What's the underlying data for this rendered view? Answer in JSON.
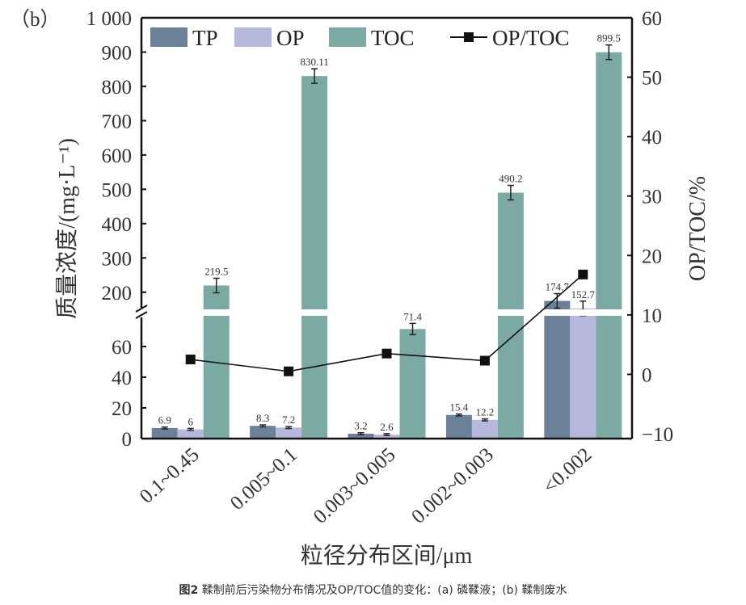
{
  "chart_data": {
    "type": "bar",
    "panel_label": "（b）",
    "title": "",
    "xlabel": "粒径分布区间/μm",
    "ylabel": "质量浓度/(mg·L⁻¹)",
    "ylabel_right": "OP/TOC/%",
    "categories": [
      "0.1~0.45",
      "0.005~0.1",
      "0.003~0.005",
      "0.002~0.003",
      "<0.002"
    ],
    "series": [
      {
        "name": "TP",
        "type": "bar",
        "axis": "left",
        "color": "#6b8199",
        "values": [
          6.9,
          8.3,
          3.2,
          15.4,
          174.7
        ],
        "labels": [
          "6.9",
          "8.3",
          "3.2",
          "15.4",
          "174.7"
        ]
      },
      {
        "name": "OP",
        "type": "bar",
        "axis": "left",
        "color": "#b5b8dc",
        "values": [
          6,
          7.2,
          2.6,
          12.2,
          152.7
        ],
        "labels": [
          "6",
          "7.2",
          "2.6",
          "12.2",
          "152.7"
        ]
      },
      {
        "name": "TOC",
        "type": "bar",
        "axis": "left",
        "color": "#7aaaa2",
        "values": [
          219.5,
          830.11,
          71.4,
          490.2,
          899.5
        ],
        "labels": [
          "219.5",
          "830.11",
          "71.4",
          "490.2",
          "899.5"
        ]
      },
      {
        "name": "OP/TOC",
        "type": "line",
        "axis": "right",
        "color": "#111111",
        "marker": "square",
        "values": [
          2.5,
          0.5,
          3.5,
          2.3,
          16.8
        ]
      }
    ],
    "y_left": {
      "broken": true,
      "lower_range": [
        0,
        80
      ],
      "upper_range": [
        150,
        1000
      ],
      "lower_ticks": [
        0,
        20,
        40,
        60
      ],
      "upper_ticks": [
        200,
        300,
        400,
        500,
        600,
        700,
        800,
        900,
        1000
      ],
      "upper_tick_labels": [
        "200",
        "300",
        "400",
        "500",
        "600",
        "700",
        "800",
        "900",
        "1 000"
      ]
    },
    "y_right": {
      "range": [
        -10,
        60
      ],
      "ticks": [
        -10,
        0,
        10,
        20,
        30,
        40,
        50,
        60
      ],
      "tick_labels": [
        "−10",
        "0",
        "10",
        "20",
        "30",
        "40",
        "50",
        "60"
      ]
    },
    "legend": {
      "placement": "top-left",
      "entries": [
        "TP",
        "OP",
        "TOC",
        "OP/TOC"
      ]
    },
    "grid": false
  },
  "caption": {
    "label": "图2",
    "text": " 鞣制前后污染物分布情况及OP/TOC值的变化：(a) 磷鞣液；(b) 鞣制废水"
  }
}
